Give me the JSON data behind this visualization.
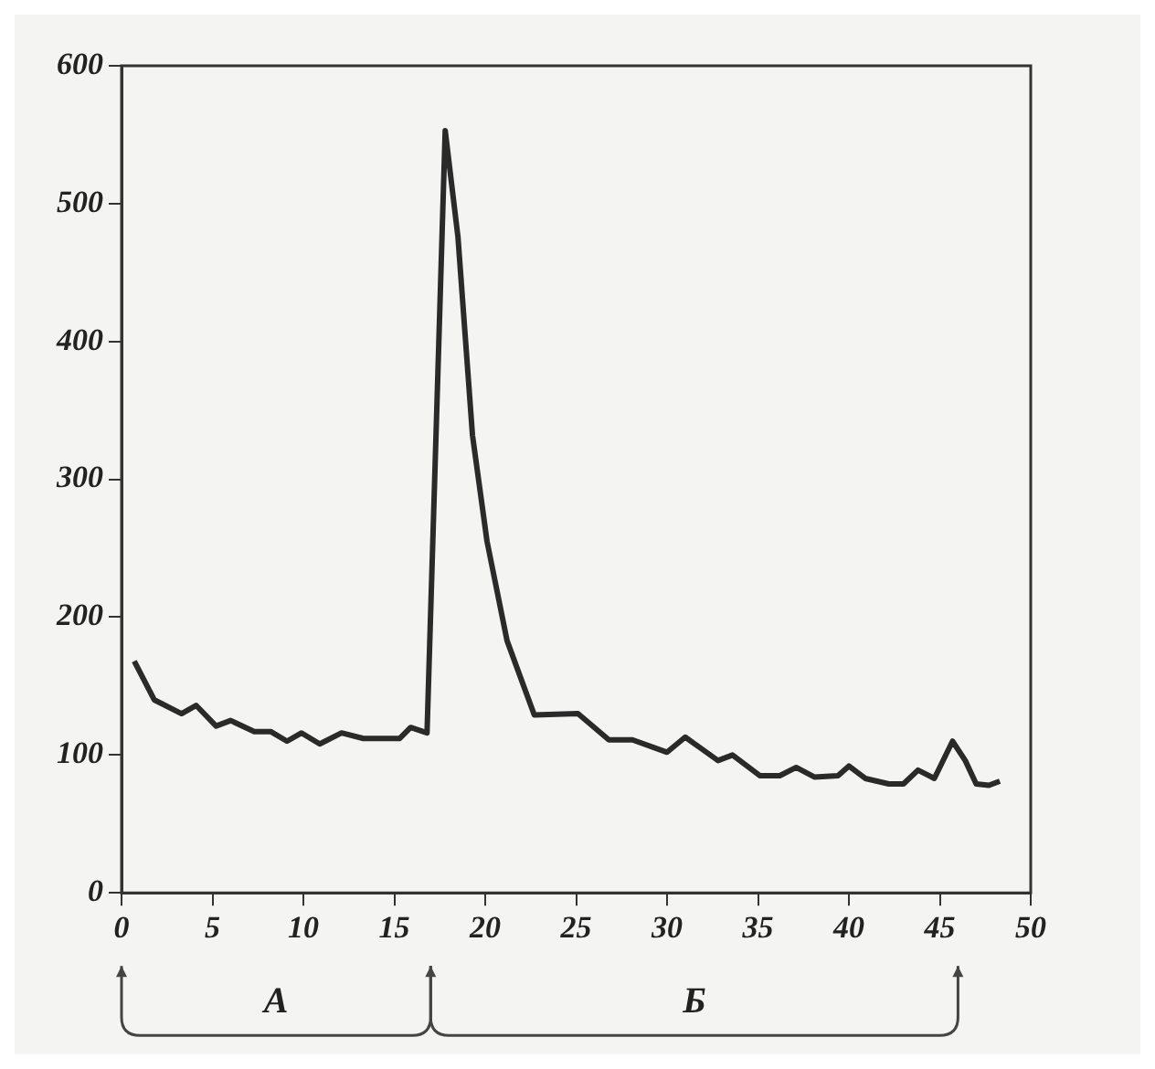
{
  "chart_data": {
    "type": "line",
    "x": [
      0.7,
      1.8,
      3.3,
      4.1,
      5.2,
      6.0,
      7.3,
      8.2,
      9.1,
      9.9,
      10.9,
      12.1,
      13.3,
      15.3,
      15.9,
      16.8,
      17.8,
      18.5,
      19.3,
      20.1,
      21.2,
      22.7,
      25.1,
      26.8,
      28.1,
      30.0,
      31.0,
      32.8,
      33.6,
      35.1,
      36.2,
      37.1,
      38.1,
      39.4,
      40.0,
      40.9,
      42.2,
      43.0,
      43.8,
      44.7,
      45.7,
      46.4,
      47.0,
      47.7,
      48.3
    ],
    "series": [
      {
        "color": "#2a2a2a",
        "values": [
          168,
          140,
          130,
          136,
          121,
          125,
          117,
          117,
          110,
          116,
          108,
          116,
          112,
          112,
          120,
          116,
          553,
          476,
          332,
          255,
          183,
          129,
          130,
          111,
          111,
          102,
          113,
          96,
          100,
          85,
          85,
          91,
          84,
          85,
          92,
          83,
          79,
          79,
          89,
          83,
          110,
          96,
          79,
          78,
          81
        ]
      }
    ],
    "xlim": [
      0,
      50
    ],
    "xticks": [
      0,
      5,
      10,
      15,
      20,
      25,
      30,
      35,
      40,
      45,
      50
    ],
    "ylim": [
      0,
      600
    ],
    "yticks": [
      0,
      100,
      200,
      300,
      400,
      500,
      600
    ],
    "grid": false,
    "legend": false,
    "marker": "none",
    "line_style": "solid",
    "annotations": [
      "А",
      "Б"
    ]
  }
}
